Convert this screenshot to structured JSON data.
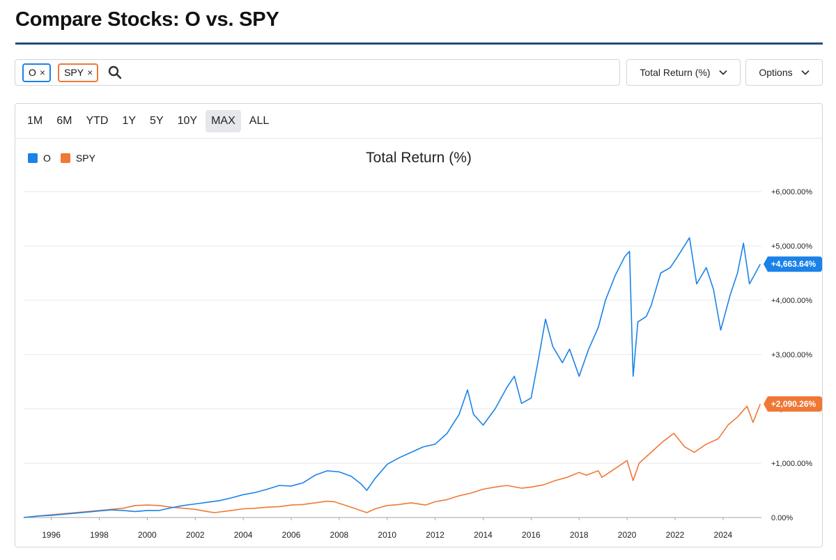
{
  "page": {
    "title": "Compare Stocks: O vs. SPY"
  },
  "search": {
    "chips": [
      {
        "label": "O",
        "color": "#1a82e8"
      },
      {
        "label": "SPY",
        "color": "#f07836"
      }
    ],
    "close_glyph": "×"
  },
  "controls": {
    "metric_label": "Total Return (%)",
    "options_label": "Options"
  },
  "ranges": [
    "1M",
    "6M",
    "YTD",
    "1Y",
    "5Y",
    "10Y",
    "MAX",
    "ALL"
  ],
  "active_range": "MAX",
  "chart_data": {
    "type": "line",
    "title": "Total Return (%)",
    "xlabel": "",
    "ylabel": "",
    "xlim": [
      1994.85,
      2025.6
    ],
    "ylim": [
      0,
      6000
    ],
    "yticks": [
      0,
      1000,
      2000,
      3000,
      4000,
      5000,
      6000
    ],
    "ytick_labels": [
      "0.00%",
      "+1,000.00%",
      "+2,000.00%",
      "+3,000.00%",
      "+4,000.00%",
      "+5,000.00%",
      "+6,000.00%"
    ],
    "xticks": [
      1996,
      1998,
      2000,
      2002,
      2004,
      2006,
      2008,
      2010,
      2012,
      2014,
      2016,
      2018,
      2020,
      2022,
      2024
    ],
    "xtick_labels": [
      "1996",
      "1998",
      "2000",
      "2002",
      "2004",
      "2006",
      "2008",
      "2010",
      "2012",
      "2014",
      "2016",
      "2018",
      "2020",
      "2022",
      "2024"
    ],
    "grid": true,
    "legend_position": "top-left",
    "series": [
      {
        "name": "O",
        "color": "#1a82e8",
        "end_label": "+4,663.64%",
        "points": [
          [
            1994.85,
            0
          ],
          [
            1995.5,
            30
          ],
          [
            1996.0,
            40
          ],
          [
            1996.5,
            60
          ],
          [
            1997.0,
            80
          ],
          [
            1997.5,
            100
          ],
          [
            1998.0,
            120
          ],
          [
            1998.5,
            140
          ],
          [
            1999.0,
            130
          ],
          [
            1999.5,
            110
          ],
          [
            2000.0,
            130
          ],
          [
            2000.5,
            130
          ],
          [
            2001.0,
            180
          ],
          [
            2001.5,
            220
          ],
          [
            2002.0,
            250
          ],
          [
            2002.5,
            280
          ],
          [
            2003.0,
            310
          ],
          [
            2003.5,
            360
          ],
          [
            2004.0,
            420
          ],
          [
            2004.5,
            460
          ],
          [
            2005.0,
            520
          ],
          [
            2005.5,
            590
          ],
          [
            2006.0,
            580
          ],
          [
            2006.5,
            640
          ],
          [
            2007.0,
            780
          ],
          [
            2007.5,
            860
          ],
          [
            2008.0,
            840
          ],
          [
            2008.5,
            760
          ],
          [
            2008.9,
            620
          ],
          [
            2009.15,
            500
          ],
          [
            2009.5,
            720
          ],
          [
            2010.0,
            980
          ],
          [
            2010.5,
            1100
          ],
          [
            2011.0,
            1200
          ],
          [
            2011.5,
            1300
          ],
          [
            2012.0,
            1350
          ],
          [
            2012.5,
            1550
          ],
          [
            2013.0,
            1900
          ],
          [
            2013.35,
            2350
          ],
          [
            2013.6,
            1900
          ],
          [
            2014.0,
            1700
          ],
          [
            2014.5,
            2000
          ],
          [
            2015.0,
            2400
          ],
          [
            2015.3,
            2600
          ],
          [
            2015.6,
            2100
          ],
          [
            2016.0,
            2200
          ],
          [
            2016.3,
            2900
          ],
          [
            2016.6,
            3650
          ],
          [
            2016.9,
            3150
          ],
          [
            2017.3,
            2850
          ],
          [
            2017.6,
            3100
          ],
          [
            2018.0,
            2600
          ],
          [
            2018.4,
            3100
          ],
          [
            2018.8,
            3500
          ],
          [
            2019.1,
            4000
          ],
          [
            2019.5,
            4450
          ],
          [
            2019.9,
            4800
          ],
          [
            2020.1,
            4900
          ],
          [
            2020.25,
            2600
          ],
          [
            2020.45,
            3600
          ],
          [
            2020.8,
            3700
          ],
          [
            2021.0,
            3900
          ],
          [
            2021.4,
            4500
          ],
          [
            2021.8,
            4600
          ],
          [
            2022.1,
            4800
          ],
          [
            2022.6,
            5150
          ],
          [
            2022.9,
            4300
          ],
          [
            2023.3,
            4600
          ],
          [
            2023.6,
            4200
          ],
          [
            2023.9,
            3450
          ],
          [
            2024.3,
            4100
          ],
          [
            2024.6,
            4500
          ],
          [
            2024.85,
            5050
          ],
          [
            2025.1,
            4300
          ],
          [
            2025.35,
            4500
          ],
          [
            2025.55,
            4664
          ]
        ]
      },
      {
        "name": "SPY",
        "color": "#f07836",
        "end_label": "+2,090.26%",
        "points": [
          [
            1994.85,
            0
          ],
          [
            1995.5,
            30
          ],
          [
            1996.0,
            50
          ],
          [
            1996.5,
            70
          ],
          [
            1997.0,
            90
          ],
          [
            1997.5,
            110
          ],
          [
            1998.0,
            130
          ],
          [
            1998.5,
            150
          ],
          [
            1999.0,
            170
          ],
          [
            1999.5,
            220
          ],
          [
            2000.0,
            230
          ],
          [
            2000.5,
            220
          ],
          [
            2001.0,
            190
          ],
          [
            2001.5,
            170
          ],
          [
            2002.0,
            150
          ],
          [
            2002.5,
            110
          ],
          [
            2002.8,
            90
          ],
          [
            2003.5,
            130
          ],
          [
            2004.0,
            160
          ],
          [
            2004.5,
            170
          ],
          [
            2005.0,
            190
          ],
          [
            2005.5,
            200
          ],
          [
            2006.0,
            230
          ],
          [
            2006.5,
            240
          ],
          [
            2007.0,
            270
          ],
          [
            2007.5,
            300
          ],
          [
            2007.8,
            290
          ],
          [
            2008.5,
            190
          ],
          [
            2009.15,
            90
          ],
          [
            2009.5,
            160
          ],
          [
            2010.0,
            220
          ],
          [
            2010.5,
            240
          ],
          [
            2011.0,
            270
          ],
          [
            2011.6,
            230
          ],
          [
            2012.0,
            290
          ],
          [
            2012.5,
            330
          ],
          [
            2013.0,
            400
          ],
          [
            2013.5,
            450
          ],
          [
            2014.0,
            520
          ],
          [
            2014.5,
            560
          ],
          [
            2015.0,
            590
          ],
          [
            2015.6,
            540
          ],
          [
            2016.0,
            560
          ],
          [
            2016.5,
            600
          ],
          [
            2017.0,
            680
          ],
          [
            2017.5,
            740
          ],
          [
            2018.0,
            830
          ],
          [
            2018.3,
            780
          ],
          [
            2018.8,
            860
          ],
          [
            2018.95,
            740
          ],
          [
            2019.5,
            900
          ],
          [
            2020.0,
            1050
          ],
          [
            2020.25,
            680
          ],
          [
            2020.5,
            1000
          ],
          [
            2021.0,
            1200
          ],
          [
            2021.5,
            1400
          ],
          [
            2021.95,
            1550
          ],
          [
            2022.4,
            1300
          ],
          [
            2022.8,
            1200
          ],
          [
            2023.3,
            1350
          ],
          [
            2023.8,
            1450
          ],
          [
            2024.2,
            1700
          ],
          [
            2024.6,
            1850
          ],
          [
            2025.0,
            2050
          ],
          [
            2025.25,
            1750
          ],
          [
            2025.55,
            2090
          ]
        ]
      }
    ]
  }
}
